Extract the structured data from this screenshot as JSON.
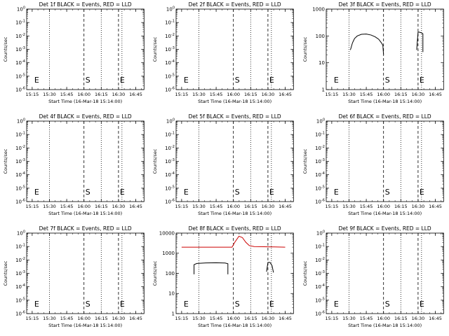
{
  "chart_data": [
    {
      "type": "line",
      "title": "Det 1f BLACK = Events, RED = LLD",
      "xlabel": "Start Time (16-Mar-18 15:14:00)",
      "ylabel": "Counts/sec",
      "y_scale": "log",
      "x_tick_labels": [
        "15:15",
        "15:30",
        "15:45",
        "16:00",
        "16:15",
        "16:30",
        "16:45"
      ],
      "y_tick_labels": [
        "10^-6",
        "10^-5",
        "10^-4",
        "10^-3",
        "10^-2",
        "10^-1",
        "10^0"
      ],
      "markers": [
        {
          "label": "E",
          "time": "15:15"
        },
        {
          "label": "S",
          "time": "16:00"
        },
        {
          "label": "E",
          "time": "16:30"
        }
      ],
      "series": []
    },
    {
      "type": "line",
      "title": "Det 2f BLACK = Events, RED = LLD",
      "xlabel": "Start Time (16-Mar-18 15:14:00)",
      "ylabel": "Counts/sec",
      "y_scale": "log",
      "x_tick_labels": [
        "15:15",
        "15:30",
        "15:45",
        "16:00",
        "16:15",
        "16:30",
        "16:45"
      ],
      "y_tick_labels": [
        "10^-6",
        "10^-5",
        "10^-4",
        "10^-3",
        "10^-2",
        "10^-1",
        "10^0"
      ],
      "markers": [
        {
          "label": "E",
          "time": "15:15"
        },
        {
          "label": "S",
          "time": "16:00"
        },
        {
          "label": "E",
          "time": "16:30"
        }
      ],
      "series": []
    },
    {
      "type": "line",
      "title": "Det 3f BLACK = Events, RED = LLD",
      "xlabel": "Start Time (16-Mar-18 15:14:00)",
      "ylabel": "Counts/sec",
      "y_scale": "log",
      "x_tick_labels": [
        "15:15",
        "15:30",
        "15:45",
        "16:00",
        "16:15",
        "16:30",
        "16:45"
      ],
      "y_tick_labels": [
        "1",
        "10",
        "100",
        "1000"
      ],
      "markers": [
        {
          "label": "E",
          "time": "15:15"
        },
        {
          "label": "S",
          "time": "16:00"
        },
        {
          "label": "E",
          "time": "16:30"
        }
      ],
      "series": [
        {
          "color": "#000000",
          "points": [
            [
              15.52,
              30
            ],
            [
              15.55,
              55
            ],
            [
              15.58,
              80
            ],
            [
              15.62,
              100
            ],
            [
              15.68,
              115
            ],
            [
              15.75,
              118
            ],
            [
              15.82,
              108
            ],
            [
              15.88,
              92
            ],
            [
              15.93,
              75
            ],
            [
              15.97,
              55
            ],
            [
              15.99,
              45
            ]
          ]
        },
        {
          "color": "#000000",
          "points": [
            [
              15.99,
              45
            ],
            [
              16.0,
              20
            ]
          ]
        },
        {
          "color": "#000000",
          "points": [
            [
              16.48,
              30
            ],
            [
              16.5,
              140
            ],
            [
              16.52,
              138
            ],
            [
              16.55,
              130
            ],
            [
              16.57,
              120
            ],
            [
              16.57,
              25
            ]
          ]
        }
      ]
    },
    {
      "type": "line",
      "title": "Det 4f BLACK = Events, RED = LLD",
      "xlabel": "Start Time (16-Mar-18 15:14:00)",
      "ylabel": "Counts/sec",
      "y_scale": "log",
      "x_tick_labels": [
        "15:15",
        "15:30",
        "15:45",
        "16:00",
        "16:15",
        "16:30",
        "16:45"
      ],
      "y_tick_labels": [
        "10^-6",
        "10^-5",
        "10^-4",
        "10^-3",
        "10^-2",
        "10^-1",
        "10^0"
      ],
      "markers": [
        {
          "label": "E",
          "time": "15:15"
        },
        {
          "label": "S",
          "time": "16:00"
        },
        {
          "label": "E",
          "time": "16:30"
        }
      ],
      "series": []
    },
    {
      "type": "line",
      "title": "Det 5f BLACK = Events, RED = LLD",
      "xlabel": "Start Time (16-Mar-18 15:14:00)",
      "ylabel": "Counts/sec",
      "y_scale": "log",
      "x_tick_labels": [
        "15:15",
        "15:30",
        "15:45",
        "16:00",
        "16:15",
        "16:30",
        "16:45"
      ],
      "y_tick_labels": [
        "10^-6",
        "10^-5",
        "10^-4",
        "10^-3",
        "10^-2",
        "10^-1",
        "10^0"
      ],
      "markers": [
        {
          "label": "E",
          "time": "15:15"
        },
        {
          "label": "S",
          "time": "16:00"
        },
        {
          "label": "E",
          "time": "16:30"
        }
      ],
      "series": []
    },
    {
      "type": "line",
      "title": "Det 6f BLACK = Events, RED = LLD",
      "xlabel": "Start Time (16-Mar-18 15:14:00)",
      "ylabel": "Counts/sec",
      "y_scale": "log",
      "x_tick_labels": [
        "15:15",
        "15:30",
        "15:45",
        "16:00",
        "16:15",
        "16:30",
        "16:45"
      ],
      "y_tick_labels": [
        "10^-6",
        "10^-5",
        "10^-4",
        "10^-3",
        "10^-2",
        "10^-1",
        "10^0"
      ],
      "markers": [
        {
          "label": "E",
          "time": "15:15"
        },
        {
          "label": "S",
          "time": "16:00"
        },
        {
          "label": "E",
          "time": "16:30"
        }
      ],
      "series": []
    },
    {
      "type": "line",
      "title": "Det 7f BLACK = Events, RED = LLD",
      "xlabel": "Start Time (16-Mar-18 15:14:00)",
      "ylabel": "Counts/sec",
      "y_scale": "log",
      "x_tick_labels": [
        "15:15",
        "15:30",
        "15:45",
        "16:00",
        "16:15",
        "16:30",
        "16:45"
      ],
      "y_tick_labels": [
        "10^-6",
        "10^-5",
        "10^-4",
        "10^-3",
        "10^-2",
        "10^-1",
        "10^0"
      ],
      "markers": [
        {
          "label": "E",
          "time": "15:15"
        },
        {
          "label": "S",
          "time": "16:00"
        },
        {
          "label": "E",
          "time": "16:30"
        }
      ],
      "series": []
    },
    {
      "type": "line",
      "title": "Det 8f BLACK = Events, RED = LLD",
      "xlabel": "Start Time (16-Mar-18 15:14:00)",
      "ylabel": "Counts/sec",
      "y_scale": "log",
      "x_tick_labels": [
        "15:15",
        "15:30",
        "15:45",
        "16:00",
        "16:15",
        "16:30",
        "16:45"
      ],
      "y_tick_labels": [
        "1",
        "10",
        "100",
        "1000",
        "10000"
      ],
      "markers": [
        {
          "label": "E",
          "time": "15:15"
        },
        {
          "label": "S",
          "time": "16:00"
        },
        {
          "label": "E",
          "time": "16:30"
        }
      ],
      "series": [
        {
          "color": "#cc0000",
          "points": [
            [
              15.25,
              2000
            ],
            [
              15.5,
              2000
            ],
            [
              15.75,
              2000
            ],
            [
              15.98,
              2000
            ],
            [
              16.02,
              3500
            ],
            [
              16.08,
              7000
            ],
            [
              16.13,
              6000
            ],
            [
              16.18,
              3500
            ],
            [
              16.23,
              2400
            ],
            [
              16.3,
              2150
            ],
            [
              16.45,
              2100
            ],
            [
              16.6,
              2050
            ],
            [
              16.75,
              2000
            ]
          ]
        },
        {
          "color": "#000000",
          "points": [
            [
              15.43,
              90
            ],
            [
              15.43,
              270
            ],
            [
              15.47,
              310
            ],
            [
              15.6,
              330
            ],
            [
              15.75,
              335
            ],
            [
              15.88,
              325
            ],
            [
              15.92,
              300
            ],
            [
              15.92,
              90
            ]
          ]
        },
        {
          "color": "#000000",
          "points": [
            [
              16.48,
              120
            ],
            [
              16.5,
              350
            ],
            [
              16.53,
              350
            ],
            [
              16.56,
              240
            ],
            [
              16.58,
              110
            ]
          ]
        }
      ]
    },
    {
      "type": "line",
      "title": "Det 9f BLACK = Events, RED = LLD",
      "xlabel": "Start Time (16-Mar-18 15:14:00)",
      "ylabel": "Counts/sec",
      "y_scale": "log",
      "x_tick_labels": [
        "15:15",
        "15:30",
        "15:45",
        "16:00",
        "16:15",
        "16:30",
        "16:45"
      ],
      "y_tick_labels": [
        "10^-6",
        "10^-5",
        "10^-4",
        "10^-3",
        "10^-2",
        "10^-1",
        "10^0"
      ],
      "markers": [
        {
          "label": "E",
          "time": "15:15"
        },
        {
          "label": "S",
          "time": "16:00"
        },
        {
          "label": "E",
          "time": "16:30"
        }
      ],
      "series": []
    }
  ]
}
